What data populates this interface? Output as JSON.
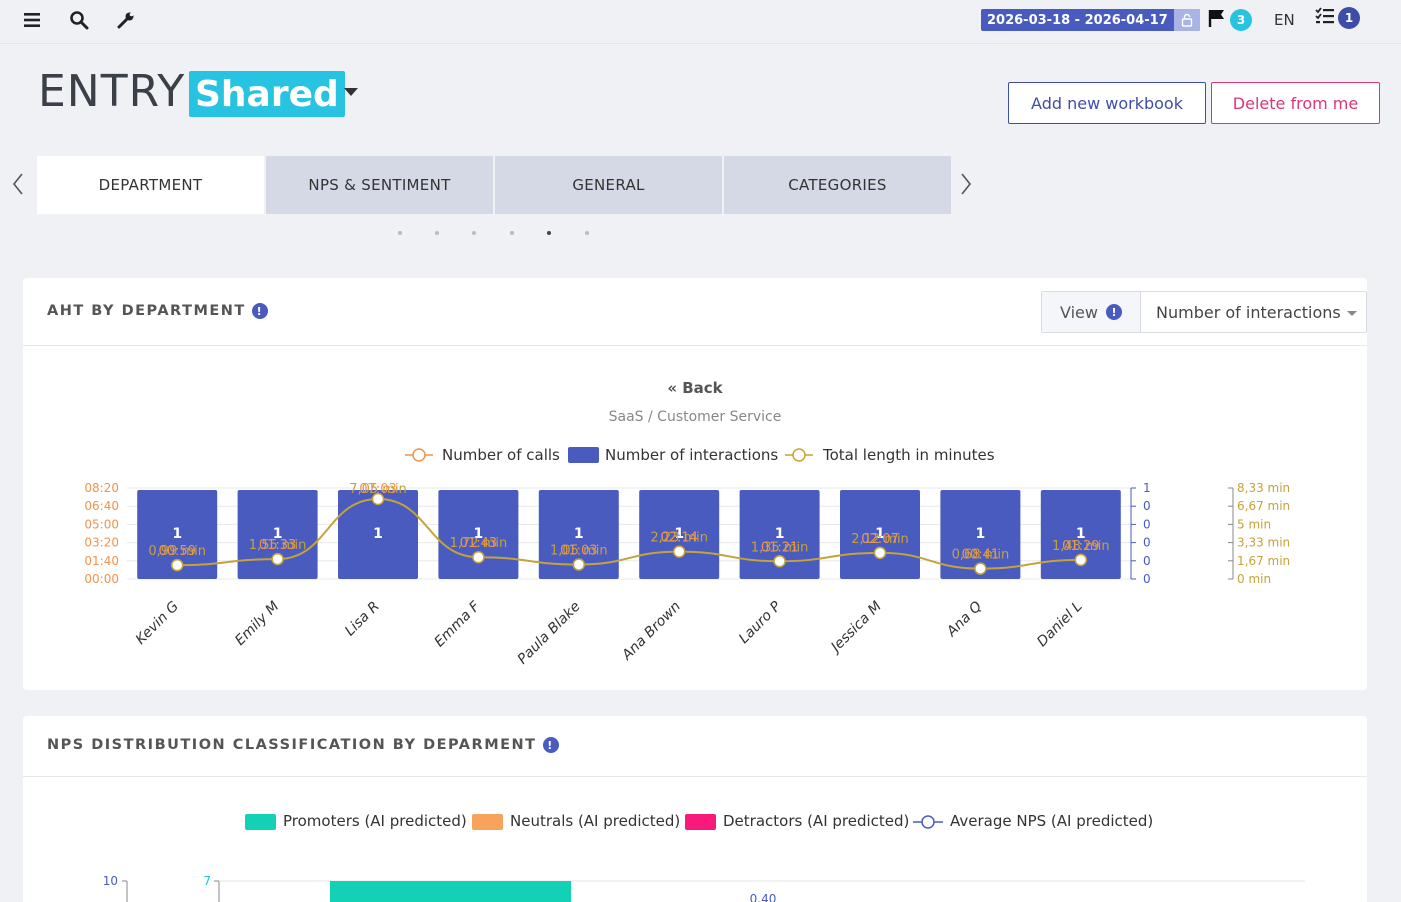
{
  "topbar": {
    "date_range": "2026-03-18 - 2026-04-17",
    "flag_count": "3",
    "language": "EN",
    "tasks_count": "1"
  },
  "header": {
    "title": "ENTRY",
    "shared_label": "Shared",
    "add_workbook": "Add new workbook",
    "delete_from_me": "Delete from me"
  },
  "tabs": [
    {
      "label": "DEPARTMENT"
    },
    {
      "label": "NPS & SENTIMENT"
    },
    {
      "label": "GENERAL"
    },
    {
      "label": "CATEGORIES"
    }
  ],
  "card1": {
    "title": "AHT BY DEPARTMENT",
    "view_label": "View",
    "view_value": "Number of interactions",
    "back_link": "« Back",
    "subtitle": "SaaS / Customer Service",
    "legend": [
      "Number of calls",
      "Number of interactions",
      "Total length in minutes"
    ]
  },
  "card2": {
    "title": "NPS DISTRIBUTION CLASSIFICATION BY DEPARMENT",
    "legend": [
      "Promoters (AI predicted)",
      "Neutrals (AI predicted)",
      "Detractors (AI predicted)",
      "Average NPS (AI predicted)"
    ],
    "left_axis_top": "10",
    "second_axis_top": "7",
    "line_label_partial": "0.40"
  },
  "colors": {
    "bar": "#4a5bbf",
    "line": "#c3a33a",
    "calls": "#f0944d",
    "promoters": "#12d1b4",
    "neutrals": "#f7a35c",
    "detractors": "#f71a7b",
    "avg_nps": "#4a5bbf"
  },
  "chart_data": {
    "type": "bar",
    "categories": [
      "Kevin G",
      "Emily M",
      "Lisa R",
      "Emma F",
      "Paula Blake",
      "Ana Brown",
      "Lauro P",
      "Jessica M",
      "Ana Q",
      "Daniel L"
    ],
    "series": [
      {
        "name": "Number of interactions",
        "values": [
          1,
          1,
          1,
          1,
          1,
          1,
          1,
          1,
          1,
          1
        ],
        "value_labels": [
          "1",
          "1",
          "1",
          "1",
          "1",
          "1",
          "1",
          "1",
          "1",
          "1"
        ]
      },
      {
        "name": "Number of calls",
        "values": [
          0,
          0,
          0,
          0,
          0,
          0,
          0,
          0,
          0,
          0
        ],
        "time_labels": [
          "00:59",
          "01:33",
          "07:03",
          "01:43",
          "01:03",
          "02:14",
          "01:21",
          "02:07",
          "00:41",
          "01:29"
        ]
      },
      {
        "name": "Total length in minutes",
        "values": [
          0.99,
          1.55,
          7.05,
          1.72,
          1.05,
          2.23,
          1.35,
          2.12,
          0.68,
          1.48
        ],
        "value_labels": [
          "0,99 min",
          "1,55 min",
          "7,05 min",
          "1,72 min",
          "1,05 min",
          "2,23 min",
          "1,35 min",
          "2,12 min",
          "0,68 min",
          "1,48 min"
        ]
      }
    ],
    "y_left_ticks": [
      "00:00",
      "01:40",
      "03:20",
      "05:00",
      "06:40",
      "08:20"
    ],
    "y_mid_ticks": [
      "0",
      "0",
      "0",
      "0",
      "0",
      "1"
    ],
    "y_right_ticks": [
      "0 min",
      "1,67 min",
      "3,33 min",
      "5 min",
      "6,67 min",
      "8,33 min"
    ],
    "ylim_minutes": [
      0,
      8.33
    ]
  }
}
